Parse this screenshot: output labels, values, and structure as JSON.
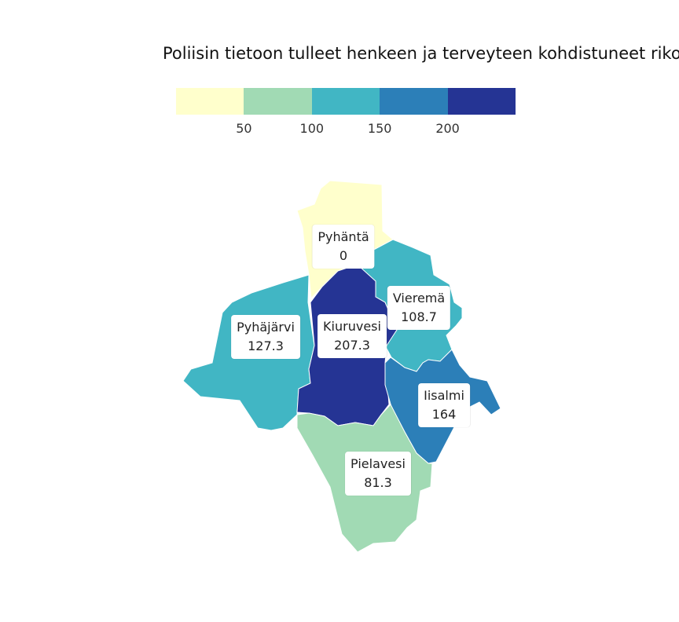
{
  "title": "Poliisin tietoon tulleet henkeen ja terveyteen kohdistuneet riko",
  "legend": {
    "colors": [
      "#ffffcc",
      "#a1dab4",
      "#41b6c4",
      "#2c7fb8",
      "#253494"
    ],
    "ticks": [
      "50",
      "100",
      "150",
      "200"
    ]
  },
  "chart_data": {
    "type": "choropleth",
    "regions": [
      {
        "name": "Pyhäntä",
        "value": 0,
        "value_label": "0",
        "color": "#ffffcc"
      },
      {
        "name": "Vieremä",
        "value": 108.7,
        "value_label": "108.7",
        "color": "#41b6c4"
      },
      {
        "name": "Pyhäjärvi",
        "value": 127.3,
        "value_label": "127.3",
        "color": "#41b6c4"
      },
      {
        "name": "Kiuruvesi",
        "value": 207.3,
        "value_label": "207.3",
        "color": "#253494"
      },
      {
        "name": "Iisalmi",
        "value": 164,
        "value_label": "164",
        "color": "#2c7fb8"
      },
      {
        "name": "Pielavesi",
        "value": 81.3,
        "value_label": "81.3",
        "color": "#a1dab4"
      }
    ],
    "legend_breaks": [
      50,
      100,
      150,
      200
    ]
  }
}
